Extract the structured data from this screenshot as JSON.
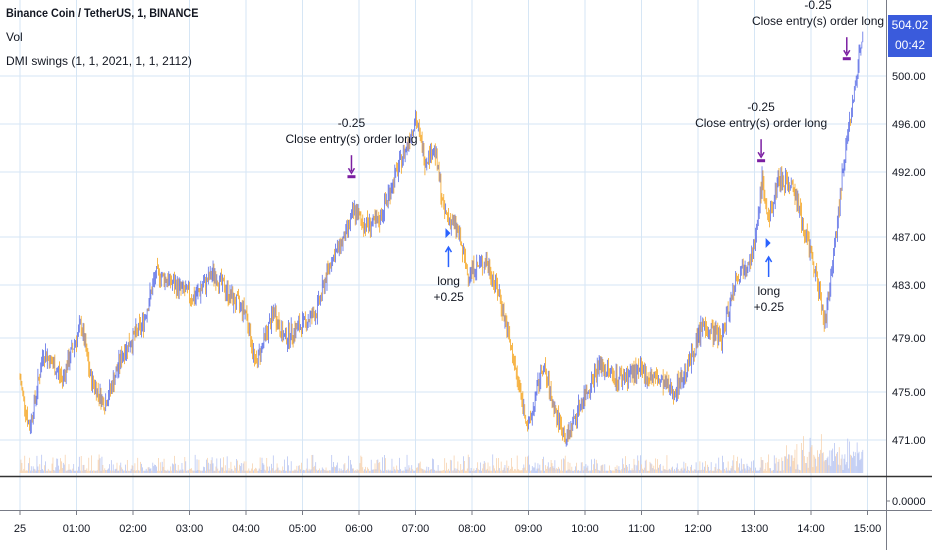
{
  "legend": {
    "title": "Binance Coin / TetherUS, 1, BINANCE",
    "vol": "Vol",
    "indicator": "DMI swings (1, 1, 2021, 1, 1, 2112)"
  },
  "last_price": {
    "value": "504.02",
    "countdown": "00:42"
  },
  "annotations": [
    {
      "id": "close-1",
      "line1": "-0.25",
      "line2": "Close entry(s) order long",
      "time": "05:52",
      "price": 491.6
    },
    {
      "id": "long-1",
      "line1": "long",
      "line2": "+0.25",
      "time": "07:35",
      "price": 487.3
    },
    {
      "id": "close-2",
      "line1": "-0.25",
      "line2": "Close entry(s) order long",
      "time": "13:07",
      "price": 492.9
    },
    {
      "id": "long-2",
      "line1": "long",
      "line2": "+0.25",
      "time": "13:15",
      "price": 486.5
    },
    {
      "id": "close-3",
      "line1": "-0.25",
      "line2": "Close entry(s) order long",
      "time": "14:38",
      "price": 501.4
    }
  ],
  "colors": {
    "up": "#5b6ee6",
    "down": "#f5a623",
    "marker": "#7b1fa2",
    "arrow": "#2962ff",
    "grid": "#d6e6f5",
    "price_tag": "#3a5bdc"
  },
  "chart_data": {
    "type": "candlestick",
    "symbol": "Binance Coin / TetherUS, 1, BINANCE",
    "x_ticks": [
      "25",
      "01:00",
      "02:00",
      "03:00",
      "04:00",
      "05:00",
      "06:00",
      "07:00",
      "08:00",
      "09:00",
      "10:00",
      "11:00",
      "12:00",
      "13:00",
      "14:00",
      "15:00"
    ],
    "y_ticks": [
      "471.00",
      "475.00",
      "479.00",
      "483.00",
      "487.00",
      "492.00",
      "496.00",
      "500.00"
    ],
    "volume_tick": "0.0000",
    "ylim": [
      469,
      506
    ],
    "close_path": [
      [
        "00:00",
        476.0
      ],
      [
        "00:10",
        472.0
      ],
      [
        "00:25",
        478.0
      ],
      [
        "00:45",
        476.0
      ],
      [
        "01:05",
        480.0
      ],
      [
        "01:15",
        476.0
      ],
      [
        "01:30",
        474.0
      ],
      [
        "01:50",
        478.0
      ],
      [
        "02:10",
        480.0
      ],
      [
        "02:25",
        484.0
      ],
      [
        "02:45",
        483.0
      ],
      [
        "03:05",
        482.0
      ],
      [
        "03:25",
        484.0
      ],
      [
        "03:45",
        482.0
      ],
      [
        "04:00",
        481.0
      ],
      [
        "04:10",
        477.0
      ],
      [
        "04:30",
        481.0
      ],
      [
        "04:40",
        479.0
      ],
      [
        "05:00",
        480.0
      ],
      [
        "05:15",
        481.0
      ],
      [
        "05:30",
        485.0
      ],
      [
        "05:45",
        487.0
      ],
      [
        "05:55",
        489.0
      ],
      [
        "06:05",
        488.0
      ],
      [
        "06:20",
        488.0
      ],
      [
        "06:35",
        491.0
      ],
      [
        "06:50",
        494.0
      ],
      [
        "07:00",
        496.5
      ],
      [
        "07:10",
        493.0
      ],
      [
        "07:20",
        494.0
      ],
      [
        "07:30",
        489.0
      ],
      [
        "07:45",
        487.5
      ],
      [
        "07:55",
        484.0
      ],
      [
        "08:15",
        485.0
      ],
      [
        "08:30",
        482.0
      ],
      [
        "08:45",
        477.0
      ],
      [
        "09:00",
        472.0
      ],
      [
        "09:15",
        477.0
      ],
      [
        "09:30",
        473.0
      ],
      [
        "09:40",
        471.0
      ],
      [
        "09:55",
        474.0
      ],
      [
        "10:15",
        477.0
      ],
      [
        "10:35",
        476.0
      ],
      [
        "10:55",
        476.5
      ],
      [
        "11:15",
        476.0
      ],
      [
        "11:35",
        475.0
      ],
      [
        "11:50",
        477.0
      ],
      [
        "12:05",
        480.0
      ],
      [
        "12:25",
        479.0
      ],
      [
        "12:40",
        483.5
      ],
      [
        "13:00",
        486.0
      ],
      [
        "13:08",
        491.5
      ],
      [
        "13:15",
        488.0
      ],
      [
        "13:25",
        491.5
      ],
      [
        "13:40",
        491.0
      ],
      [
        "13:55",
        487.0
      ],
      [
        "14:05",
        484.0
      ],
      [
        "14:15",
        480.0
      ],
      [
        "14:25",
        486.0
      ],
      [
        "14:35",
        493.0
      ],
      [
        "14:45",
        498.0
      ],
      [
        "14:55",
        504.0
      ]
    ]
  }
}
